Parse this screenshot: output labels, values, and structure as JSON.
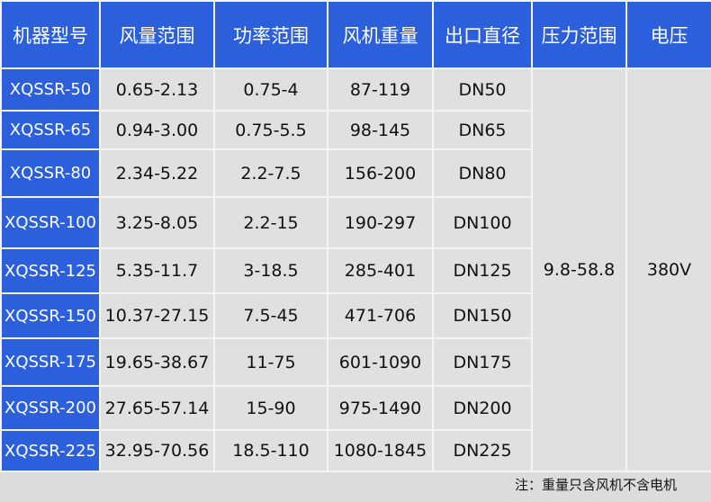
{
  "headers": [
    "机器型号",
    "风量范围",
    "功率范围",
    "风机重量",
    "出口直径",
    "压力范围",
    "电压"
  ],
  "rows": [
    {
      "model": "XQSSR-50",
      "airflow": "0.65-2.13",
      "power": "0.75-4",
      "weight": "87-119",
      "outlet": "DN50"
    },
    {
      "model": "XQSSR-65",
      "airflow": "0.94-3.00",
      "power": "0.75-5.5",
      "weight": "98-145",
      "outlet": "DN65"
    },
    {
      "model": "XQSSR-80",
      "airflow": "2.34-5.22",
      "power": "2.2-7.5",
      "weight": "156-200",
      "outlet": "DN80"
    },
    {
      "model": "XQSSR-100",
      "airflow": "3.25-8.05",
      "power": "2.2-15",
      "weight": "190-297",
      "outlet": "DN100"
    },
    {
      "model": "XQSSR-125",
      "airflow": "5.35-11.7",
      "power": "3-18.5",
      "weight": "285-401",
      "outlet": "DN125"
    },
    {
      "model": "XQSSR-150",
      "airflow": "10.37-27.15",
      "power": "7.5-45",
      "weight": "471-706",
      "outlet": "DN150"
    },
    {
      "model": "XQSSR-175",
      "airflow": "19.65-38.67",
      "power": "11-75",
      "weight": "601-1090",
      "outlet": "DN175"
    },
    {
      "model": "XQSSR-200",
      "airflow": "27.65-57.14",
      "power": "15-90",
      "weight": "975-1490",
      "outlet": "DN200"
    },
    {
      "model": "XQSSR-225",
      "airflow": "32.95-70.56",
      "power": "18.5-110",
      "weight": "1080-1845",
      "outlet": "DN225"
    }
  ],
  "pressure": "9.8-58.8",
  "voltage": "380V",
  "note": "注：重量只含风机不含电机",
  "colors": {
    "header": "#2b5fdc",
    "cell": "#e0e0e0"
  }
}
